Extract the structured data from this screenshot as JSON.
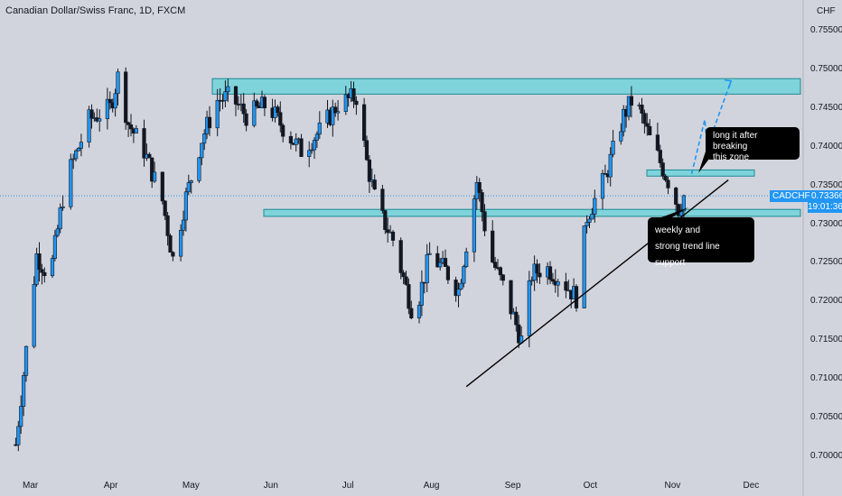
{
  "chart_title": "Canadian Dollar/Swiss Franc, 1D, FXCM",
  "currency": "CHF",
  "symbol": "CADCHF",
  "last_price": "0.73366",
  "countdown": "19:01:36",
  "colors": {
    "background": "#d1d4dc",
    "candle": "#131722",
    "wick": "#131722",
    "zone_fill": "#7fd3da",
    "zone_border": "#1e8a94",
    "arrow": "#2196f3",
    "badge": "#2196f3",
    "note_bg": "#000000"
  },
  "annotations": {
    "long_note_line1": "long it after breaking",
    "long_note_line2": "this zone",
    "support_note_line1": "weekly and",
    "support_note_line2": "strong trend line support"
  },
  "chart_data": {
    "type": "candlestick",
    "symbol": "CADCHF",
    "timeframe": "1D",
    "y_axis": {
      "range": [
        0.6965,
        0.7575
      ],
      "ticks": [
        "0.75500",
        "0.75000",
        "0.74500",
        "0.74000",
        "0.73500",
        "0.73000",
        "0.72500",
        "0.72000",
        "0.71500",
        "0.71000",
        "0.70500",
        "0.70000"
      ]
    },
    "x_axis": {
      "ticks": [
        "Mar",
        "Apr",
        "May",
        "Jun",
        "Jul",
        "Aug",
        "Sep",
        "Oct",
        "Nov",
        "Dec"
      ]
    },
    "last_price": 0.73366,
    "price_path": [
      {
        "date": "Feb 25",
        "close": 0.7015
      },
      {
        "date": "Mar 5",
        "close": 0.726
      },
      {
        "date": "Mar 10",
        "close": 0.723
      },
      {
        "date": "Mar 16",
        "close": 0.7355
      },
      {
        "date": "Mar 25",
        "close": 0.7435
      },
      {
        "date": "Apr 2",
        "close": 0.745
      },
      {
        "date": "Apr 5",
        "close": 0.749
      },
      {
        "date": "Apr 9",
        "close": 0.743
      },
      {
        "date": "Apr 15",
        "close": 0.7395
      },
      {
        "date": "Apr 22",
        "close": 0.733
      },
      {
        "date": "Apr 26",
        "close": 0.7255
      },
      {
        "date": "May 1",
        "close": 0.7335
      },
      {
        "date": "May 7",
        "close": 0.741
      },
      {
        "date": "May 13",
        "close": 0.746
      },
      {
        "date": "May 18",
        "close": 0.7465
      },
      {
        "date": "May 24",
        "close": 0.744
      },
      {
        "date": "Jun 1",
        "close": 0.7455
      },
      {
        "date": "Jun 8",
        "close": 0.742
      },
      {
        "date": "Jun 14",
        "close": 0.7395
      },
      {
        "date": "Jun 21",
        "close": 0.742
      },
      {
        "date": "Jun 28",
        "close": 0.7455
      },
      {
        "date": "Jul 5",
        "close": 0.7465
      },
      {
        "date": "Jul 9",
        "close": 0.738
      },
      {
        "date": "Jul 13",
        "close": 0.732
      },
      {
        "date": "Jul 19",
        "close": 0.728
      },
      {
        "date": "Jul 27",
        "close": 0.718
      },
      {
        "date": "Aug 2",
        "close": 0.726
      },
      {
        "date": "Aug 8",
        "close": 0.724
      },
      {
        "date": "Aug 13",
        "close": 0.7215
      },
      {
        "date": "Aug 20",
        "close": 0.7355
      },
      {
        "date": "Aug 25",
        "close": 0.726
      },
      {
        "date": "Aug 30",
        "close": 0.722
      },
      {
        "date": "Sep 6",
        "close": 0.715
      },
      {
        "date": "Sep 10",
        "close": 0.7235
      },
      {
        "date": "Sep 15",
        "close": 0.7245
      },
      {
        "date": "Sep 21",
        "close": 0.723
      },
      {
        "date": "Sep 27",
        "close": 0.7205
      },
      {
        "date": "Oct 1",
        "close": 0.731
      },
      {
        "date": "Oct 8",
        "close": 0.736
      },
      {
        "date": "Oct 15",
        "close": 0.744
      },
      {
        "date": "Oct 19",
        "close": 0.7465
      },
      {
        "date": "Oct 25",
        "close": 0.741
      },
      {
        "date": "Oct 29",
        "close": 0.738
      },
      {
        "date": "Nov 3",
        "close": 0.734
      },
      {
        "date": "Nov 5",
        "close": 0.732
      },
      {
        "date": "Nov 7",
        "close": 0.73366
      }
    ],
    "zones": [
      {
        "price_low": 0.7468,
        "price_high": 0.7488
      },
      {
        "price_low": 0.7362,
        "price_high": 0.737
      },
      {
        "price_low": 0.731,
        "price_high": 0.7319
      }
    ],
    "trend_line": {
      "start": {
        "date": "Aug 16",
        "price": 0.709
      },
      "end": {
        "date": "Nov 24",
        "price": 0.7357
      }
    },
    "projection": [
      {
        "date": "Nov 10",
        "price": 0.7365
      },
      {
        "date": "Nov 15",
        "price": 0.7435
      },
      {
        "date": "Nov 16",
        "price": 0.74
      },
      {
        "date": "Nov 25",
        "price": 0.7485
      }
    ]
  }
}
